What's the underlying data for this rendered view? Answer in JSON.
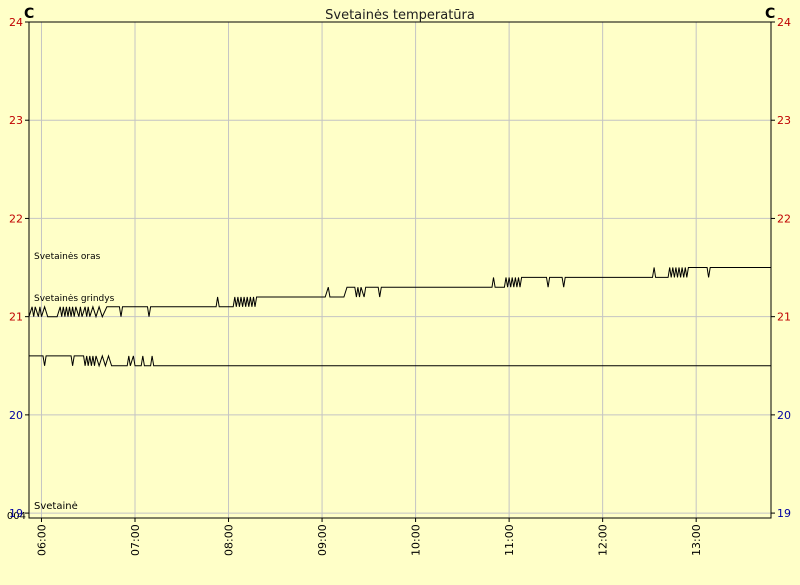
{
  "chart_data": {
    "type": "line",
    "title": "Svetainės temperatūra",
    "unit_left": "C",
    "unit_right": "C",
    "ylim": [
      18.95,
      24
    ],
    "yticks": [
      19,
      20,
      21,
      22,
      23,
      24
    ],
    "ytick_colors": {
      "19": "#0000a0",
      "20": "#0000a0",
      "21": "#c00000",
      "22": "#c00000",
      "23": "#c00000",
      "24": "#c00000"
    },
    "bottom_left_label": "004",
    "corner_label": "Svetainė",
    "xlim": [
      "05:52",
      "13:48"
    ],
    "xticks": [
      "06:00",
      "07:00",
      "08:00",
      "09:00",
      "10:00",
      "11:00",
      "12:00",
      "13:00"
    ],
    "grid": true,
    "colors": {
      "background": "#ffffc8",
      "grid": "#c4c4c4",
      "line": "#000000",
      "axis": "#000000"
    },
    "series": [
      {
        "name": "Svetainės oras",
        "points": [
          [
            "05:52",
            21.0
          ],
          [
            "05:54",
            21.1
          ],
          [
            "05:55",
            21.0
          ],
          [
            "05:56",
            21.1
          ],
          [
            "05:58",
            21.0
          ],
          [
            "05:59",
            21.1
          ],
          [
            "06:00",
            21.0
          ],
          [
            "06:02",
            21.1
          ],
          [
            "06:04",
            21.0
          ],
          [
            "06:10",
            21.0
          ],
          [
            "06:12",
            21.1
          ],
          [
            "06:13",
            21.0
          ],
          [
            "06:14",
            21.1
          ],
          [
            "06:15",
            21.0
          ],
          [
            "06:16",
            21.1
          ],
          [
            "06:17",
            21.0
          ],
          [
            "06:18",
            21.1
          ],
          [
            "06:19",
            21.0
          ],
          [
            "06:20",
            21.1
          ],
          [
            "06:21",
            21.0
          ],
          [
            "06:22",
            21.1
          ],
          [
            "06:24",
            21.0
          ],
          [
            "06:25",
            21.1
          ],
          [
            "06:26",
            21.0
          ],
          [
            "06:28",
            21.1
          ],
          [
            "06:29",
            21.0
          ],
          [
            "06:30",
            21.1
          ],
          [
            "06:31",
            21.0
          ],
          [
            "06:33",
            21.1
          ],
          [
            "06:35",
            21.0
          ],
          [
            "06:37",
            21.1
          ],
          [
            "06:39",
            21.0
          ],
          [
            "06:42",
            21.1
          ],
          [
            "06:50",
            21.1
          ],
          [
            "06:51",
            21.0
          ],
          [
            "06:52",
            21.1
          ],
          [
            "07:08",
            21.1
          ],
          [
            "07:09",
            21.0
          ],
          [
            "07:10",
            21.1
          ],
          [
            "07:52",
            21.1
          ],
          [
            "07:53",
            21.2
          ],
          [
            "07:54",
            21.1
          ],
          [
            "08:03",
            21.1
          ],
          [
            "08:04",
            21.2
          ],
          [
            "08:05",
            21.1
          ],
          [
            "08:06",
            21.2
          ],
          [
            "08:07",
            21.1
          ],
          [
            "08:08",
            21.2
          ],
          [
            "08:09",
            21.1
          ],
          [
            "08:10",
            21.2
          ],
          [
            "08:11",
            21.1
          ],
          [
            "08:12",
            21.2
          ],
          [
            "08:13",
            21.1
          ],
          [
            "08:14",
            21.2
          ],
          [
            "08:15",
            21.1
          ],
          [
            "08:16",
            21.2
          ],
          [
            "08:17",
            21.1
          ],
          [
            "08:18",
            21.2
          ],
          [
            "09:02",
            21.2
          ],
          [
            "09:04",
            21.3
          ],
          [
            "09:05",
            21.2
          ],
          [
            "09:14",
            21.2
          ],
          [
            "09:16",
            21.3
          ],
          [
            "09:21",
            21.3
          ],
          [
            "09:22",
            21.2
          ],
          [
            "09:23",
            21.3
          ],
          [
            "09:24",
            21.2
          ],
          [
            "09:25",
            21.3
          ],
          [
            "09:27",
            21.2
          ],
          [
            "09:28",
            21.3
          ],
          [
            "09:36",
            21.3
          ],
          [
            "09:37",
            21.2
          ],
          [
            "09:38",
            21.3
          ],
          [
            "10:49",
            21.3
          ],
          [
            "10:50",
            21.4
          ],
          [
            "10:51",
            21.3
          ],
          [
            "10:57",
            21.3
          ],
          [
            "10:58",
            21.4
          ],
          [
            "10:59",
            21.3
          ],
          [
            "11:00",
            21.4
          ],
          [
            "11:01",
            21.3
          ],
          [
            "11:02",
            21.4
          ],
          [
            "11:03",
            21.3
          ],
          [
            "11:04",
            21.4
          ],
          [
            "11:05",
            21.3
          ],
          [
            "11:06",
            21.4
          ],
          [
            "11:07",
            21.3
          ],
          [
            "11:08",
            21.4
          ],
          [
            "11:24",
            21.4
          ],
          [
            "11:25",
            21.3
          ],
          [
            "11:26",
            21.4
          ],
          [
            "11:34",
            21.4
          ],
          [
            "11:35",
            21.3
          ],
          [
            "11:36",
            21.4
          ],
          [
            "12:32",
            21.4
          ],
          [
            "12:33",
            21.5
          ],
          [
            "12:34",
            21.4
          ],
          [
            "12:42",
            21.4
          ],
          [
            "12:43",
            21.5
          ],
          [
            "12:44",
            21.4
          ],
          [
            "12:45",
            21.5
          ],
          [
            "12:46",
            21.4
          ],
          [
            "12:47",
            21.5
          ],
          [
            "12:48",
            21.4
          ],
          [
            "12:49",
            21.5
          ],
          [
            "12:50",
            21.4
          ],
          [
            "12:51",
            21.5
          ],
          [
            "12:52",
            21.4
          ],
          [
            "12:53",
            21.5
          ],
          [
            "12:54",
            21.4
          ],
          [
            "12:55",
            21.5
          ],
          [
            "13:07",
            21.5
          ],
          [
            "13:08",
            21.4
          ],
          [
            "13:09",
            21.5
          ],
          [
            "13:48",
            21.5
          ]
        ]
      },
      {
        "name": "Svetainės grindys",
        "points": [
          [
            "05:52",
            20.6
          ],
          [
            "06:01",
            20.6
          ],
          [
            "06:02",
            20.5
          ],
          [
            "06:03",
            20.6
          ],
          [
            "06:19",
            20.6
          ],
          [
            "06:20",
            20.5
          ],
          [
            "06:21",
            20.6
          ],
          [
            "06:27",
            20.6
          ],
          [
            "06:28",
            20.5
          ],
          [
            "06:29",
            20.6
          ],
          [
            "06:30",
            20.5
          ],
          [
            "06:31",
            20.6
          ],
          [
            "06:32",
            20.5
          ],
          [
            "06:33",
            20.6
          ],
          [
            "06:34",
            20.5
          ],
          [
            "06:35",
            20.6
          ],
          [
            "06:37",
            20.5
          ],
          [
            "06:39",
            20.6
          ],
          [
            "06:41",
            20.5
          ],
          [
            "06:43",
            20.6
          ],
          [
            "06:45",
            20.5
          ],
          [
            "06:55",
            20.5
          ],
          [
            "06:56",
            20.6
          ],
          [
            "06:57",
            20.5
          ],
          [
            "06:59",
            20.6
          ],
          [
            "07:00",
            20.5
          ],
          [
            "07:04",
            20.5
          ],
          [
            "07:05",
            20.6
          ],
          [
            "07:06",
            20.5
          ],
          [
            "07:10",
            20.5
          ],
          [
            "07:11",
            20.6
          ],
          [
            "07:12",
            20.5
          ],
          [
            "13:48",
            20.5
          ]
        ]
      }
    ]
  }
}
